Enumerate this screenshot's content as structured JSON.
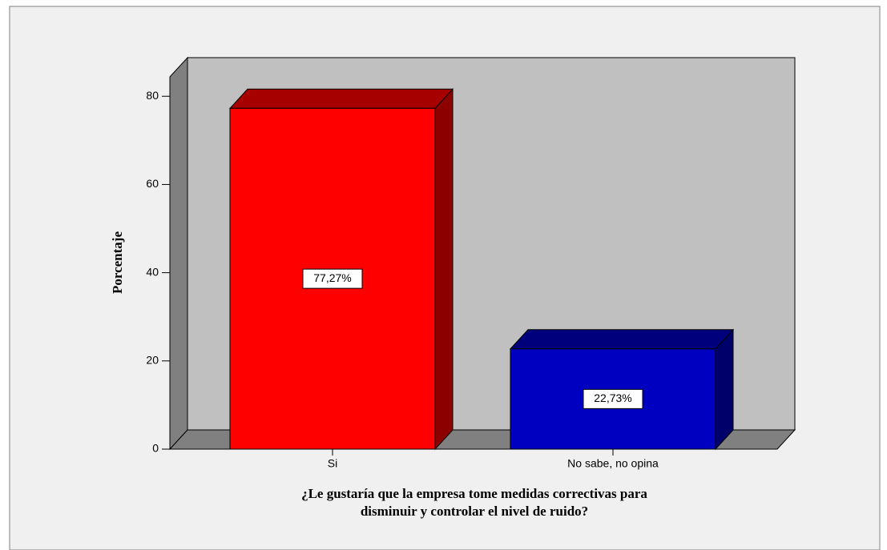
{
  "chart_data": {
    "type": "bar3d",
    "categories": [
      "Si",
      "No sabe, no opina"
    ],
    "values": [
      77.27,
      22.73
    ],
    "value_labels": [
      "77,27%",
      "22,73%"
    ],
    "colors": [
      "#ff0000",
      "#0000c0"
    ],
    "ylabel": "Porcentaje",
    "xlabel": [
      "¿Le gustaría que la empresa tome medidas correctivas para",
      "disminuir y controlar el nivel de ruido?"
    ],
    "ylim": [
      0,
      84.4
    ],
    "yticks": [
      0,
      20,
      40,
      60,
      80
    ]
  }
}
